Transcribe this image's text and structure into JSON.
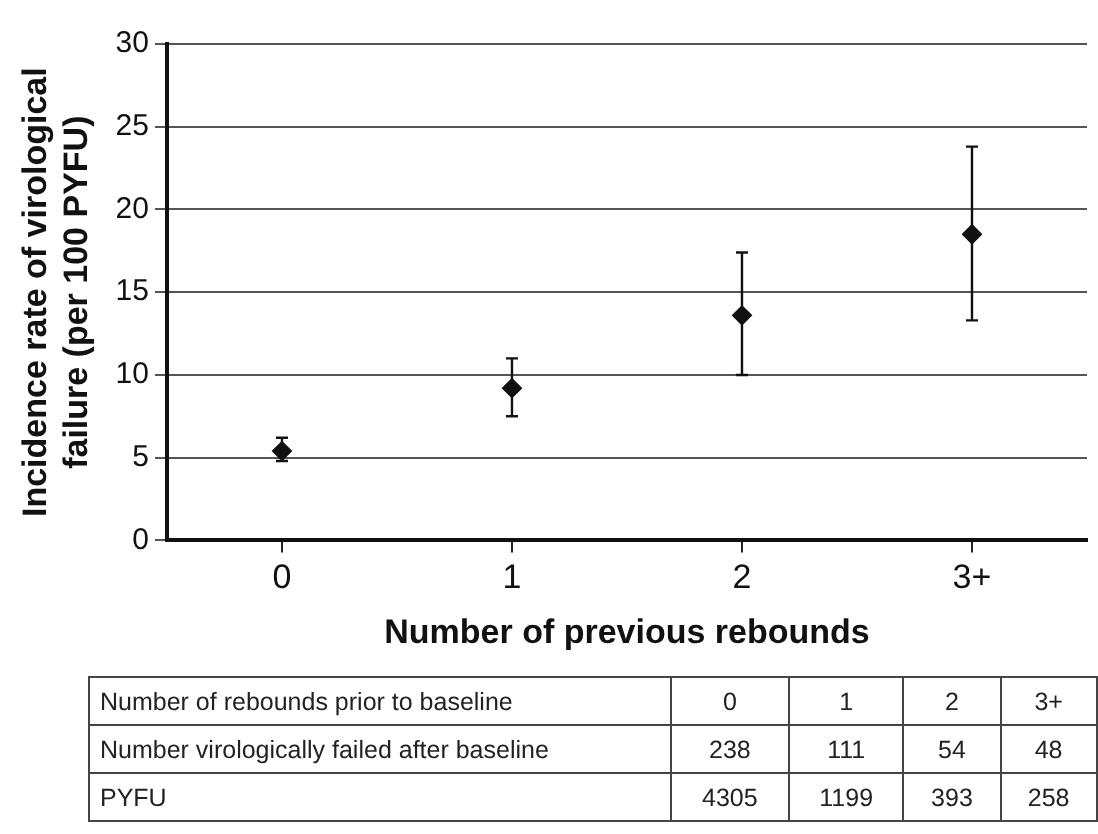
{
  "chart_data": {
    "type": "scatter",
    "xlabel": "Number of previous rebounds",
    "ylabel": "Incidence rate of virological failure (per 100 PYFU)",
    "categories": [
      "0",
      "1",
      "2",
      "3+"
    ],
    "series": [
      {
        "color": "#111111",
        "values": [
          5.4,
          9.2,
          13.6,
          18.5
        ],
        "errors": [
          [
            4.8,
            6.2
          ],
          [
            7.5,
            11.0
          ],
          [
            10.0,
            17.4
          ],
          [
            13.3,
            23.8
          ]
        ]
      }
    ],
    "ylim": [
      0,
      30
    ],
    "yticks": [
      0,
      5,
      10,
      15,
      20,
      25,
      30
    ],
    "grid": "y",
    "legend": false,
    "marker": "diamond",
    "annotations": [
      "Number of rebounds prior to baseline",
      "0",
      "1",
      "2",
      "3+",
      "Number virologically failed after baseline",
      "238",
      "111",
      "54",
      "48",
      "PYFU",
      "4305",
      "1199",
      "393",
      "258"
    ]
  }
}
